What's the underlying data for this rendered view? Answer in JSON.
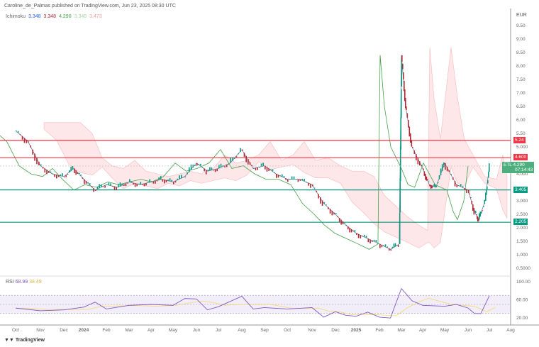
{
  "header": {
    "publish_info": "Caroline_de_Palmas published on TradingView.com, Jun 23, 2025 08:30 UTC"
  },
  "indicator": {
    "name": "Ichimoku",
    "values": [
      "3.348",
      "3.348",
      "4.290",
      "3.348",
      "3.473"
    ],
    "colors": [
      "#2962ff",
      "#b22833",
      "#43a047",
      "#a5d6a7",
      "#ef9a9a"
    ]
  },
  "price_axis": {
    "currency": "EUR",
    "ticks": [
      "9.50",
      "9.00",
      "8.50",
      "8.00",
      "7.50",
      "7.00",
      "6.50",
      "6.00",
      "5.50",
      "5.000",
      "4.000",
      "3.000",
      "2.500",
      "2.000",
      "1.500",
      "1.000",
      "0.5000"
    ]
  },
  "levels": [
    {
      "label": "5.24",
      "value": 5.24,
      "color": "#f23645"
    },
    {
      "label": "4.600",
      "value": 4.6,
      "color": "#f23645"
    },
    {
      "label": "3.405",
      "value": 3.405,
      "color": "#089981"
    },
    {
      "label": "2.205",
      "value": 2.205,
      "color": "#089981"
    }
  ],
  "last_price": {
    "symbol": "ETL",
    "value": "4.290",
    "countdown": "07:14:43",
    "color": "#4caf7d"
  },
  "time_axis": [
    "Oct",
    "Nov",
    "Dec",
    "2024",
    "Feb",
    "Mar",
    "Apr",
    "May",
    "Jun",
    "Jul",
    "Aug",
    "Sep",
    "Oct",
    "Nov",
    "Dec",
    "2025",
    "Feb",
    "Mar",
    "Apr",
    "May",
    "Jun",
    "Jul",
    "Aug"
  ],
  "chart_data": {
    "type": "line",
    "series": [
      {
        "name": "price",
        "points": [
          [
            0,
            5.6
          ],
          [
            0.5,
            5.2
          ],
          [
            1,
            4.3
          ],
          [
            1.5,
            4.0
          ],
          [
            2,
            3.9
          ],
          [
            2.5,
            4.2
          ],
          [
            3,
            3.8
          ],
          [
            3.5,
            3.4
          ],
          [
            4,
            3.6
          ],
          [
            4.5,
            3.5
          ],
          [
            5,
            3.7
          ],
          [
            5.5,
            3.6
          ],
          [
            6,
            3.7
          ],
          [
            6.5,
            3.8
          ],
          [
            7,
            3.7
          ],
          [
            7.5,
            3.9
          ],
          [
            8,
            4.4
          ],
          [
            8.5,
            4.1
          ],
          [
            9,
            4.2
          ],
          [
            9.5,
            4.4
          ],
          [
            10,
            4.9
          ],
          [
            10.5,
            4.2
          ],
          [
            11,
            4.3
          ],
          [
            11.5,
            4.0
          ],
          [
            12,
            3.8
          ],
          [
            12.5,
            3.8
          ],
          [
            13,
            3.6
          ],
          [
            13.5,
            2.9
          ],
          [
            14,
            2.5
          ],
          [
            14.5,
            2.1
          ],
          [
            15,
            1.8
          ],
          [
            15.5,
            1.6
          ],
          [
            16,
            1.4
          ],
          [
            16.5,
            1.2
          ],
          [
            16.9,
            1.4
          ],
          [
            17,
            8.4
          ],
          [
            17.2,
            6.5
          ],
          [
            17.5,
            5.0
          ],
          [
            18,
            4.2
          ],
          [
            18.3,
            3.6
          ],
          [
            18.6,
            3.5
          ],
          [
            19,
            4.4
          ],
          [
            19.5,
            3.6
          ],
          [
            20,
            3.4
          ],
          [
            20.3,
            2.6
          ],
          [
            20.5,
            2.3
          ],
          [
            20.8,
            3.0
          ],
          [
            21,
            4.29
          ]
        ]
      }
    ],
    "rsi": {
      "label": "RSI",
      "value": "68.99",
      "ma": "38.49",
      "ticks": [
        "100.00",
        "60.00",
        "20.00"
      ],
      "points": [
        [
          0,
          42
        ],
        [
          1,
          36
        ],
        [
          2,
          38
        ],
        [
          3,
          44
        ],
        [
          3.5,
          55
        ],
        [
          4,
          40
        ],
        [
          5,
          48
        ],
        [
          6,
          50
        ],
        [
          7,
          48
        ],
        [
          7.5,
          63
        ],
        [
          8,
          62
        ],
        [
          8.5,
          38
        ],
        [
          9,
          45
        ],
        [
          10,
          68
        ],
        [
          10.5,
          40
        ],
        [
          11,
          43
        ],
        [
          12,
          40
        ],
        [
          13,
          43
        ],
        [
          13.5,
          22
        ],
        [
          14,
          34
        ],
        [
          14.5,
          26
        ],
        [
          15,
          24
        ],
        [
          15.5,
          33
        ],
        [
          16,
          22
        ],
        [
          16.5,
          20
        ],
        [
          17,
          85
        ],
        [
          17.5,
          58
        ],
        [
          18,
          48
        ],
        [
          19,
          46
        ],
        [
          19.5,
          50
        ],
        [
          20,
          42
        ],
        [
          20.3,
          30
        ],
        [
          20.6,
          30
        ],
        [
          21,
          68.99
        ]
      ]
    }
  },
  "footer": {
    "brand": "TradingView"
  }
}
